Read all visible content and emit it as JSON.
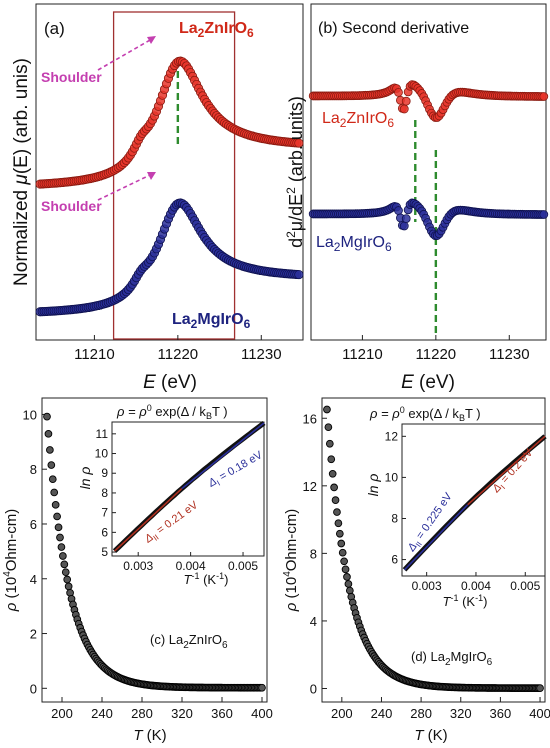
{
  "charts": {
    "a": {
      "panel_label": "(a)",
      "type": "line",
      "ylabel_pre": "Normalized ",
      "ylabel_mu": "μ",
      "ylabel_arg": "(E)",
      "ylabel_post": " (arb. unis)",
      "xlabel_var": "E",
      "xlabel_unit": " (eV)",
      "xlim": [
        11203,
        11235
      ],
      "xticks": [
        11210,
        11220,
        11230
      ],
      "series": [
        {
          "name_main": "La",
          "name_sub": "2",
          "name_rest": "ZnIrO",
          "name_sub2": "6",
          "color": "#e8352a"
        },
        {
          "name_main": "La",
          "name_sub": "2",
          "name_rest": "MgIrO",
          "name_sub2": "6",
          "color": "#2a2f9a"
        }
      ],
      "annotations": {
        "shoulder": "Shoulder"
      },
      "highlight_box": [
        11212.3,
        11226.8
      ],
      "peak_line": 11220
    },
    "b": {
      "panel_label": "(b) Second derivative",
      "type": "line",
      "ylabel_d2": "d",
      "ylabel_sup2": "2",
      "ylabel_mid": "μ/dE",
      "ylabel_sup2b": "2",
      "ylabel_post": " (arb. units)",
      "xlabel_var": "E",
      "xlabel_unit": " (eV)",
      "xlim": [
        11203,
        11235
      ],
      "xticks": [
        11210,
        11220,
        11230
      ],
      "series": [
        {
          "name_main": "La",
          "name_sub": "2",
          "name_rest": "ZnIrO",
          "name_sub2": "6",
          "color": "#e8352a"
        },
        {
          "name_main": "La",
          "name_sub": "2",
          "name_rest": "MgIrO",
          "name_sub2": "6",
          "color": "#2a2f9a"
        }
      ],
      "vlines": [
        11217.2,
        11220
      ]
    },
    "c": {
      "type": "scatter",
      "ylabel_rho": "ρ",
      "ylabel_unit": " (10",
      "ylabel_exp": "4",
      "ylabel_unit2": "Ohm-cm)",
      "xlabel_var": "T",
      "xlabel_unit": " (K)",
      "xlim": [
        180,
        405
      ],
      "ylim": [
        -0.5,
        10.6
      ],
      "xticks": [
        200,
        240,
        280,
        320,
        360,
        400
      ],
      "yticks": [
        0,
        2,
        4,
        6,
        8,
        10
      ],
      "sample_main": "(c) La",
      "sample_sub": "2",
      "sample_rest": "ZnIrO",
      "sample_sub2": "6",
      "rho0": 9.9,
      "T0": 185,
      "inset": {
        "formula_lhs": "ρ = ρ",
        "formula_sup": "0",
        "formula_rhs": " exp(Δ / k",
        "formula_sub": "B",
        "formula_end": "T )",
        "ylabel": "ln ρ",
        "xlabel_var": "T",
        "xlabel_sup": "-1",
        "xlabel_unit": " (K",
        "xlabel_unit_sup": "-1",
        "xlabel_end": ")",
        "xlim": [
          0.0025,
          0.0054
        ],
        "ylim": [
          4.8,
          11.6
        ],
        "xticks": [
          0.003,
          0.004,
          0.005
        ],
        "xtick_labels": [
          "0.003",
          "0.004",
          "0.005"
        ],
        "yticks": [
          5,
          6,
          7,
          8,
          9,
          10,
          11
        ],
        "start": [
          0.00255,
          5.05
        ],
        "end": [
          0.0054,
          11.55
        ],
        "fit_labels": [
          {
            "text_pre": "Δ",
            "text_sub": "II",
            "text_post": " = 0.21 eV",
            "color": "#b03020"
          },
          {
            "text_pre": "Δ",
            "text_sub": "I",
            "text_post": " = 0.18 eV",
            "color": "#2a2f9a"
          }
        ]
      }
    },
    "d": {
      "type": "scatter",
      "ylabel_rho": "ρ",
      "ylabel_unit": " (10",
      "ylabel_exp": "4",
      "ylabel_unit2": "Ohm-cm)",
      "xlabel_var": "T",
      "xlabel_unit": " (K)",
      "xlim": [
        180,
        405
      ],
      "ylim": [
        -0.8,
        17.2
      ],
      "xticks": [
        200,
        240,
        280,
        320,
        360,
        400
      ],
      "yticks": [
        0,
        4,
        8,
        12,
        16
      ],
      "sample_main": "(d) La",
      "sample_sub": "2",
      "sample_rest": "MgIrO",
      "sample_sub2": "6",
      "rho0": 16.5,
      "T0": 185,
      "inset": {
        "formula_lhs": "ρ = ρ",
        "formula_sup": "0",
        "formula_rhs": " exp(Δ / k",
        "formula_sub": "B",
        "formula_end": "T )",
        "ylabel": "ln ρ",
        "xlabel_var": "T",
        "xlabel_sup": "-1",
        "xlabel_unit": " (K",
        "xlabel_unit_sup": "-1",
        "xlabel_end": ")",
        "xlim": [
          0.0025,
          0.0054
        ],
        "ylim": [
          5.2,
          12.6
        ],
        "xticks": [
          0.003,
          0.004,
          0.005
        ],
        "xtick_labels": [
          "0.003",
          "0.004",
          "0.005"
        ],
        "yticks": [
          6,
          8,
          10,
          12
        ],
        "start": [
          0.00255,
          5.5
        ],
        "end": [
          0.0054,
          12.0
        ],
        "fit_labels": [
          {
            "text_pre": "Δ",
            "text_sub": "II",
            "text_post": " = 0.225 eV",
            "color": "#2a2f9a"
          },
          {
            "text_pre": "Δ",
            "text_sub": "I",
            "text_post": " = 0.2 eV",
            "color": "#b03020"
          }
        ]
      }
    }
  }
}
